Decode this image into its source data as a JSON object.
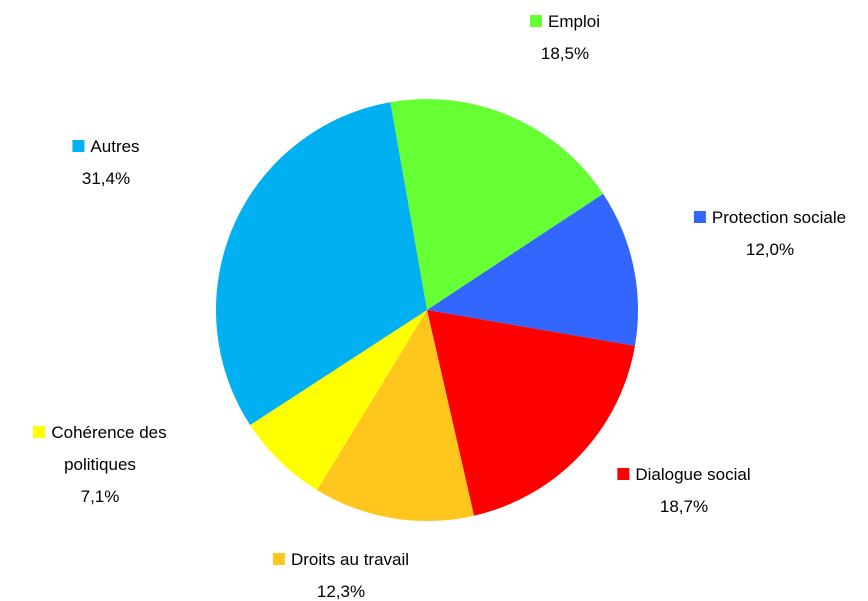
{
  "chart_data": {
    "type": "pie",
    "categories": [
      "Emploi",
      "Protection sociale",
      "Dialogue social",
      "Droits au travail",
      "Cohérence des politiques",
      "Autres"
    ],
    "values": [
      18.5,
      12.0,
      18.7,
      12.3,
      7.1,
      31.4
    ],
    "value_labels": [
      "18,5%",
      "12,0%",
      "18,7%",
      "12,3%",
      "7,1%",
      "31,4%"
    ],
    "colors": [
      "#66ff33",
      "#3366ff",
      "#ff0000",
      "#ffc61e",
      "#ffff00",
      "#00b0f0"
    ]
  }
}
